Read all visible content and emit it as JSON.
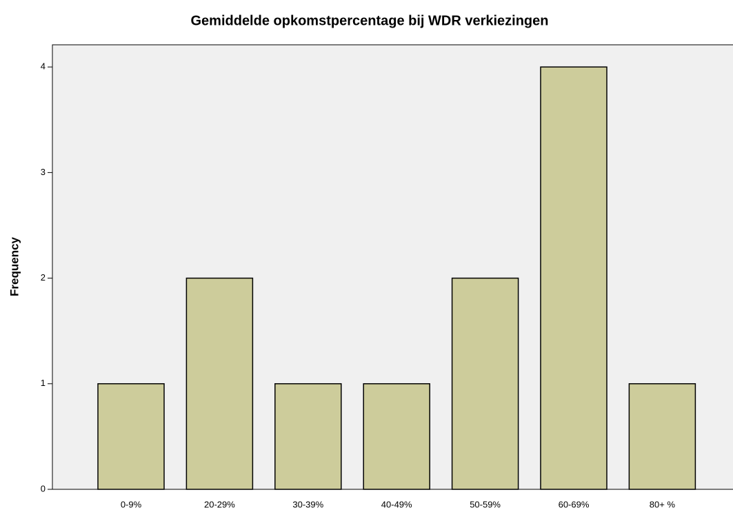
{
  "chart_data": {
    "type": "bar",
    "title": "Gemiddelde opkomstpercentage bij WDR verkiezingen",
    "y_label": "Frequency",
    "categories": [
      "0-9%",
      "20-29%",
      "30-39%",
      "40-49%",
      "50-59%",
      "60-69%",
      "80+ %"
    ],
    "values": [
      1,
      2,
      1,
      1,
      2,
      4,
      1
    ],
    "color": "#cdcc9b",
    "ylim": [
      0,
      4.21
    ],
    "yticks": [
      0,
      1,
      2,
      3,
      4
    ],
    "grid": false
  }
}
